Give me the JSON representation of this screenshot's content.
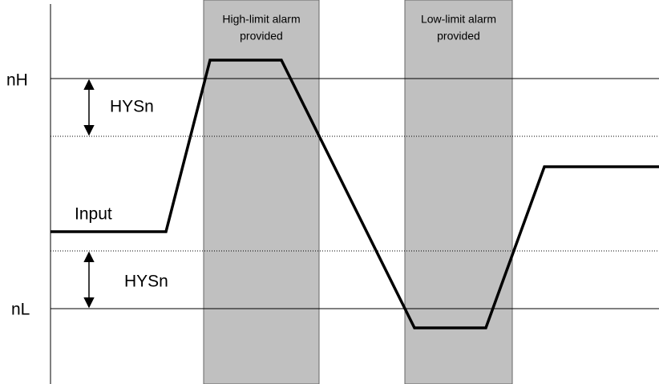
{
  "levels": {
    "high": "nH",
    "low": "nL"
  },
  "hysteresis": [
    "HYSn",
    "HYSn"
  ],
  "input_label": "Input",
  "bands": [
    {
      "lines": [
        "High-limit alarm",
        "provided"
      ]
    },
    {
      "lines": [
        "Low-limit alarm",
        "provided"
      ]
    }
  ]
}
